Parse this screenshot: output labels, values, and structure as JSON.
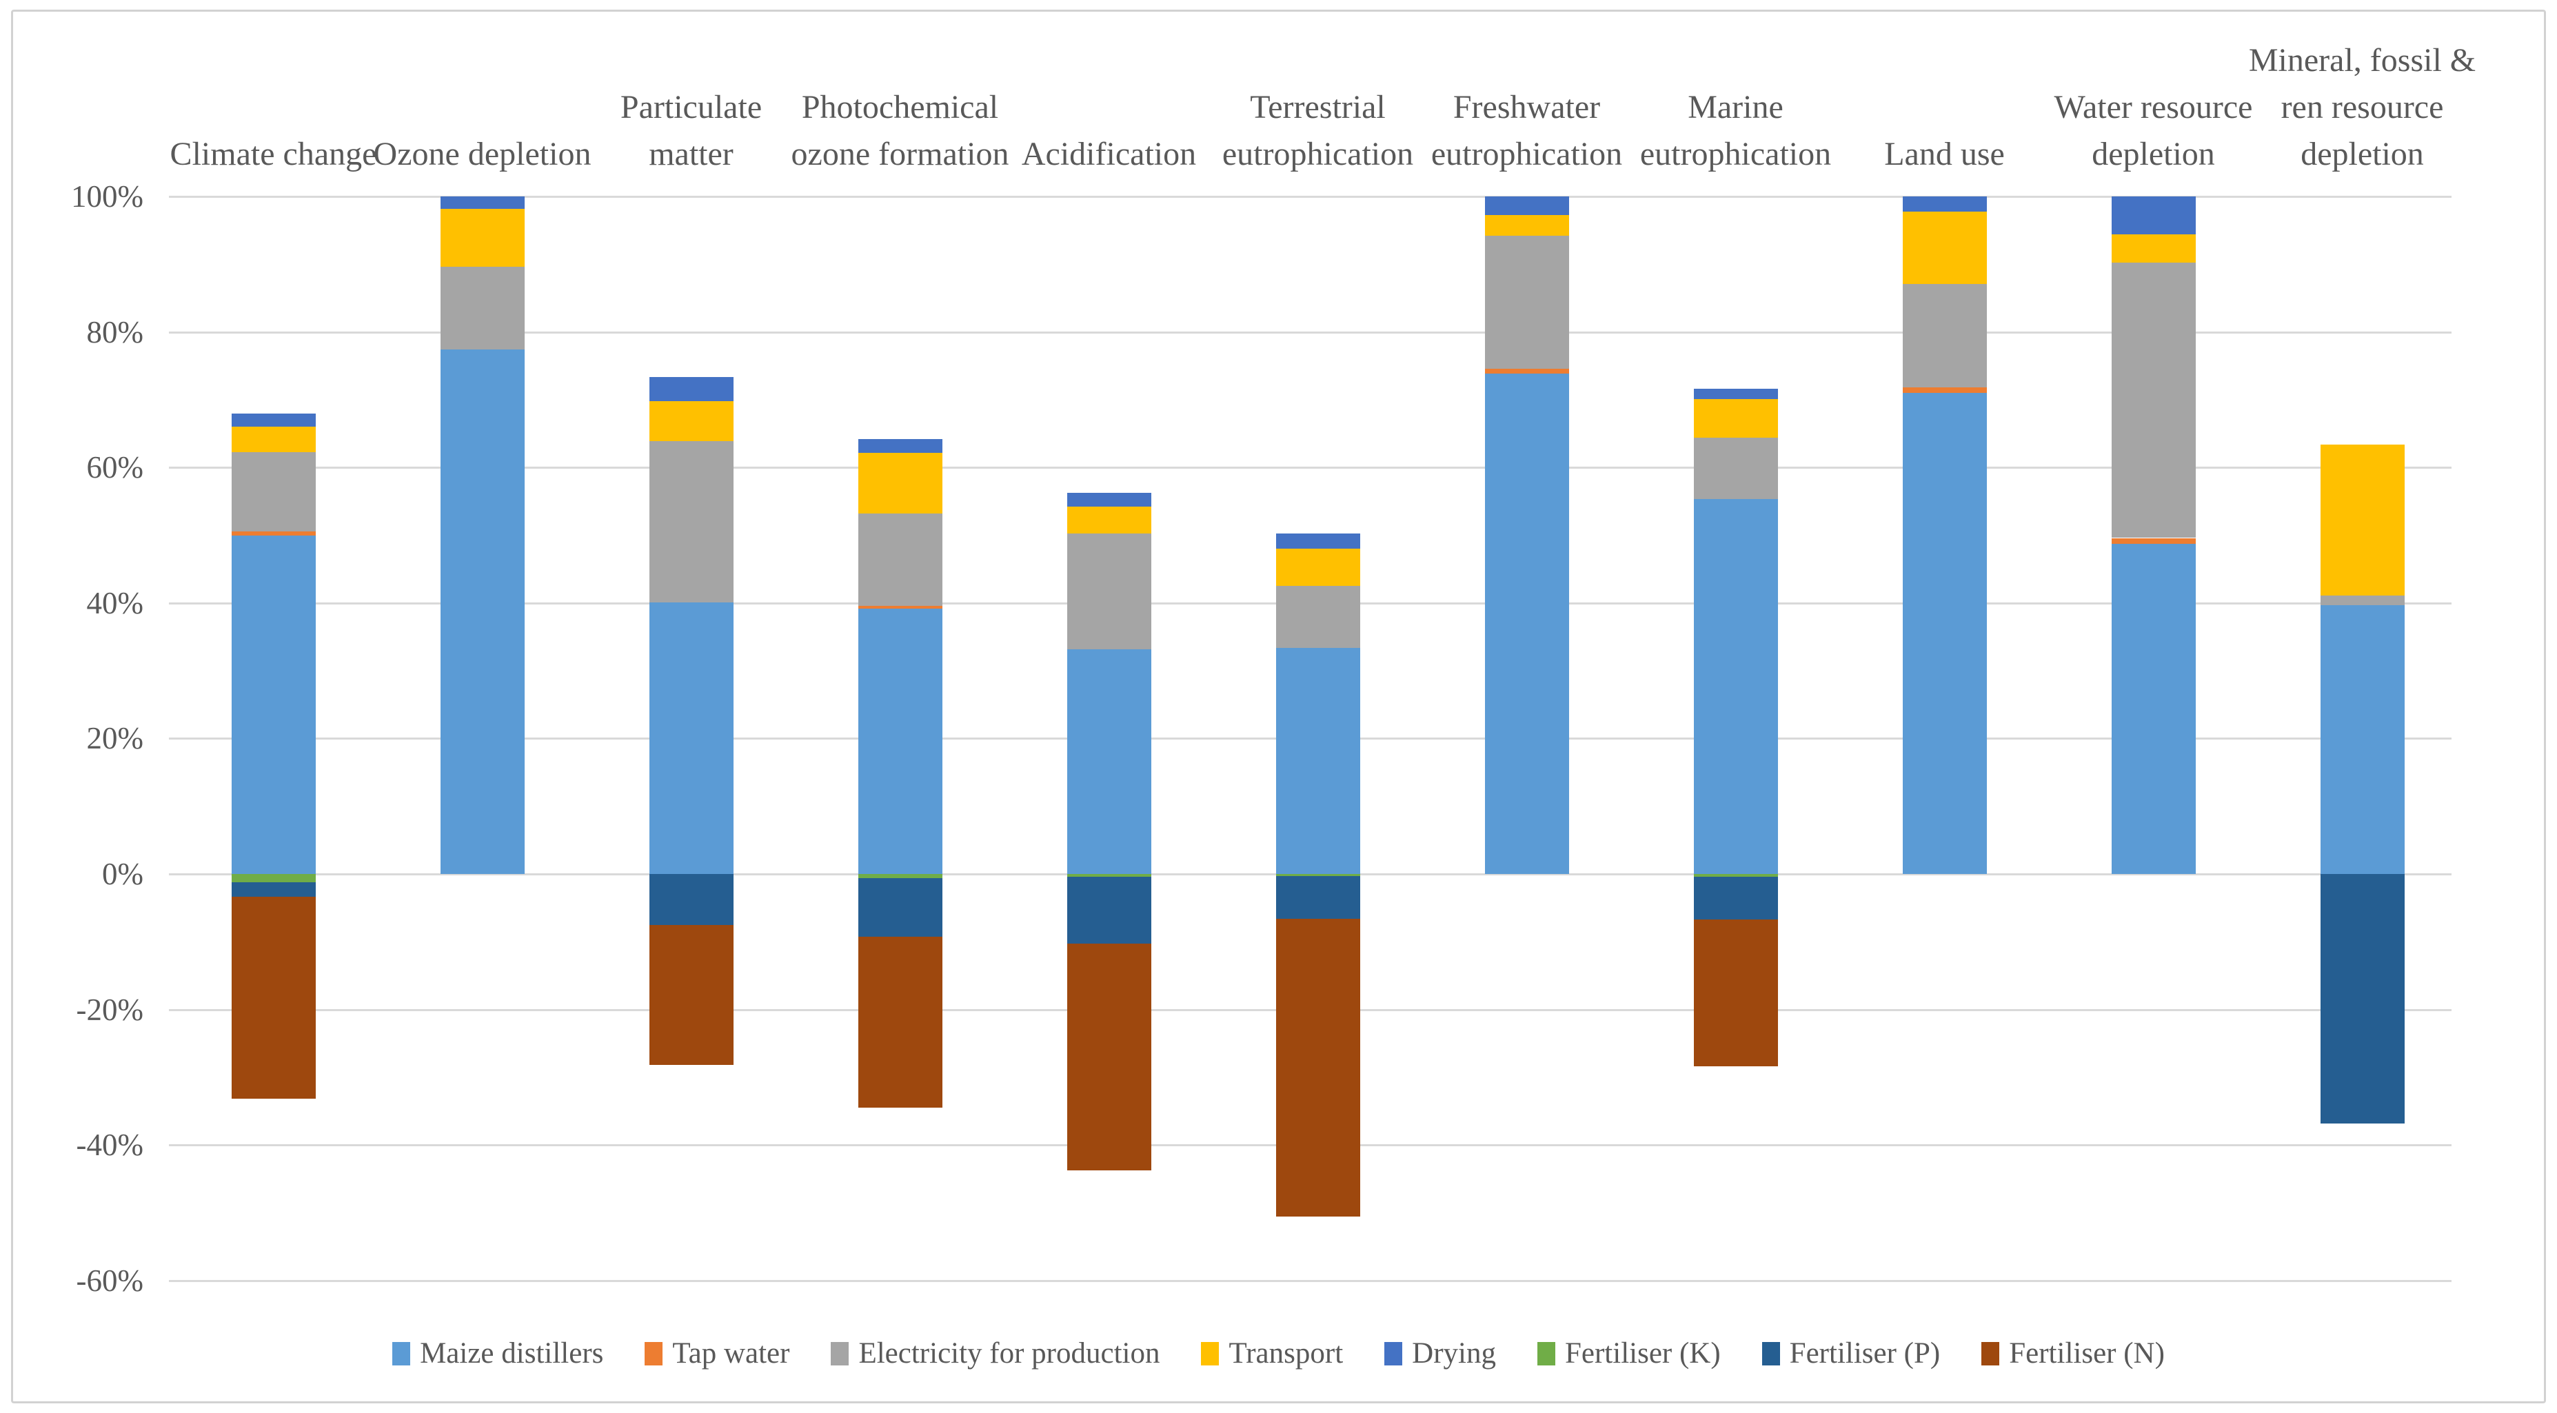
{
  "figure": {
    "background": "#FFFFFF",
    "border_color": "#D2D2D2",
    "text_color": "#595959",
    "gridline_color": "#D9D9D9"
  },
  "chart_data": {
    "type": "bar",
    "stacked": true,
    "grid": true,
    "legend_position": "bottom",
    "y_axis": {
      "unit": "%",
      "max": 100,
      "min": -60,
      "step": 20,
      "tick_labels": [
        "100%",
        "80%",
        "60%",
        "40%",
        "20%",
        "0%",
        "-20%",
        "-40%",
        "-60%"
      ]
    },
    "categories": [
      "Climate change",
      "Ozone depletion",
      "Particulate\nmatter",
      "Photochemical\nozone formation",
      "Acidification",
      "Terrestrial\neutrophication",
      "Freshwater\neutrophication",
      "Marine\neutrophication",
      "Land use",
      "Water resource\ndepletion",
      "Mineral, fossil &\nren resource\ndepletion"
    ],
    "series": [
      {
        "name": "Maize distillers",
        "color": "#5B9BD5",
        "values": [
          50.0,
          77.4,
          40.1,
          39.2,
          33.2,
          33.4,
          73.9,
          55.3,
          71.0,
          48.7,
          39.7
        ]
      },
      {
        "name": "Tap water",
        "color": "#ED7D31",
        "values": [
          0.6,
          0,
          0,
          0.4,
          0,
          0,
          0.7,
          0,
          0.8,
          0.9,
          0
        ]
      },
      {
        "name": "Electricity for production",
        "color": "#A5A5A5",
        "values": [
          11.7,
          12.2,
          23.8,
          13.6,
          17.1,
          9.1,
          19.6,
          9.1,
          15.3,
          40.6,
          1.4
        ]
      },
      {
        "name": "Transport",
        "color": "#FFC000",
        "values": [
          3.7,
          8.6,
          5.9,
          9.0,
          3.9,
          5.5,
          3.1,
          5.7,
          10.7,
          4.2,
          22.3
        ]
      },
      {
        "name": "Drying",
        "color": "#4472C4",
        "values": [
          2.0,
          1.8,
          3.6,
          2.0,
          2.1,
          2.3,
          2.7,
          1.5,
          2.2,
          5.6,
          0
        ]
      },
      {
        "name": "Fertiliser (K)",
        "color": "#70AD47",
        "values": [
          -1.2,
          0,
          0,
          -0.6,
          -0.4,
          -0.3,
          0,
          -0.4,
          0,
          0,
          0
        ]
      },
      {
        "name": "Fertiliser (P)",
        "color": "#255E91",
        "values": [
          -2.2,
          0,
          -7.5,
          -8.7,
          -9.9,
          -6.3,
          0,
          -6.3,
          0,
          0,
          -36.8
        ]
      },
      {
        "name": "Fertiliser (N)",
        "color": "#9E480E",
        "values": [
          -29.8,
          0,
          -20.7,
          -25.2,
          -33.4,
          -44.0,
          0,
          -21.7,
          0,
          0,
          0
        ]
      }
    ]
  }
}
